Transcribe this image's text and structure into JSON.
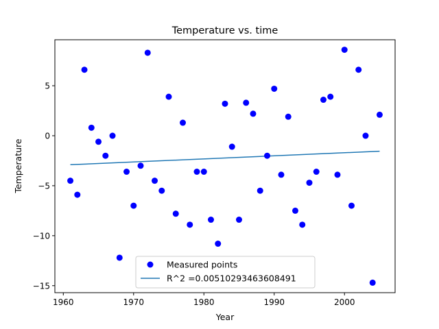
{
  "chart_data": {
    "type": "scatter",
    "title": "Temperature vs. time",
    "xlabel": "Year",
    "ylabel": "Temperature",
    "xlim": [
      1958.8,
      2007.2
    ],
    "ylim": [
      -15.7,
      9.6
    ],
    "xticks": [
      1960,
      1970,
      1980,
      1990,
      2000
    ],
    "yticks": [
      -15,
      -10,
      -5,
      0,
      5
    ],
    "grid": false,
    "legend_position": "lower-center",
    "series": [
      {
        "name": "Measured points",
        "kind": "scatter",
        "color": "#0000ff",
        "points": [
          [
            1961,
            -4.5
          ],
          [
            1962,
            -5.9
          ],
          [
            1963,
            6.6
          ],
          [
            1964,
            0.8
          ],
          [
            1965,
            -0.6
          ],
          [
            1966,
            -2.0
          ],
          [
            1967,
            0.0
          ],
          [
            1968,
            -12.2
          ],
          [
            1969,
            -3.6
          ],
          [
            1970,
            -7.0
          ],
          [
            1971,
            -3.0
          ],
          [
            1972,
            8.3
          ],
          [
            1973,
            -4.5
          ],
          [
            1974,
            -5.5
          ],
          [
            1975,
            3.9
          ],
          [
            1976,
            -7.8
          ],
          [
            1977,
            1.3
          ],
          [
            1978,
            -8.9
          ],
          [
            1979,
            -3.6
          ],
          [
            1980,
            -3.6
          ],
          [
            1981,
            -8.4
          ],
          [
            1982,
            -10.8
          ],
          [
            1983,
            3.2
          ],
          [
            1984,
            -1.1
          ],
          [
            1985,
            -8.4
          ],
          [
            1986,
            3.3
          ],
          [
            1987,
            2.2
          ],
          [
            1988,
            -5.5
          ],
          [
            1989,
            -2.0
          ],
          [
            1990,
            4.7
          ],
          [
            1991,
            -3.9
          ],
          [
            1992,
            1.9
          ],
          [
            1993,
            -7.5
          ],
          [
            1994,
            -8.9
          ],
          [
            1995,
            -4.7
          ],
          [
            1996,
            -3.6
          ],
          [
            1997,
            3.6
          ],
          [
            1998,
            3.9
          ],
          [
            1999,
            -3.9
          ],
          [
            2000,
            8.6
          ],
          [
            2001,
            -7.0
          ],
          [
            2002,
            6.6
          ],
          [
            2003,
            0.0
          ],
          [
            2004,
            -14.7
          ],
          [
            2005,
            2.1
          ]
        ]
      },
      {
        "name": "R^2 =0.00510293463608491",
        "kind": "line",
        "color": "#1f77b4",
        "points": [
          [
            1961,
            -2.9
          ],
          [
            2005,
            -1.55
          ]
        ]
      }
    ]
  }
}
